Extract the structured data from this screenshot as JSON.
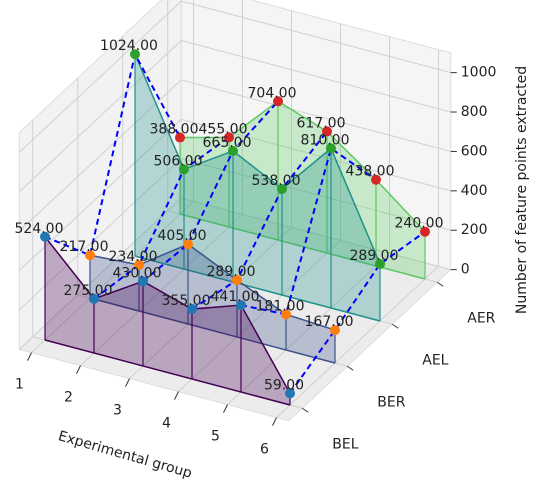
{
  "chart_data": {
    "type": "area3d",
    "xlabel": "Experimental group",
    "zlabel": "Number of feature points extracted",
    "x": [
      1,
      2,
      3,
      4,
      5,
      6
    ],
    "xticks": [
      1,
      2,
      3,
      4,
      5,
      6
    ],
    "zlim": [
      0,
      1100
    ],
    "zticks": [
      0,
      200,
      400,
      600,
      800,
      1000
    ],
    "connector_color": "#0000ff",
    "series": [
      {
        "name": "BEL",
        "color": "#440154",
        "marker_color": "#1f77b4",
        "values": [
          524,
          275,
          430,
          355,
          441,
          59
        ],
        "value_labels": [
          "524.00",
          "275.00",
          "430.00",
          "355.00",
          "441.00",
          "59.00"
        ]
      },
      {
        "name": "BER",
        "color": "#3b528b",
        "marker_color": "#ff7f0e",
        "values": [
          217,
          234,
          405,
          289,
          181,
          167
        ],
        "value_labels": [
          "217.00",
          "234.00",
          "405.00",
          "289.00",
          "181.00",
          "167.00"
        ]
      },
      {
        "name": "AEL",
        "color": "#21918c",
        "marker_color": "#2ca02c",
        "values": [
          1024,
          506,
          665,
          538,
          810,
          289
        ],
        "value_labels": [
          "1024.00",
          "506.00",
          "665.00",
          "538.00",
          "810.00",
          "289.00"
        ]
      },
      {
        "name": "AER",
        "color": "#5ec962",
        "marker_color": "#d62728",
        "values": [
          388,
          455,
          704,
          617,
          438,
          240
        ],
        "value_labels": [
          "388.00",
          "455.00",
          "704.00",
          "617.00",
          "438.00",
          "240.00"
        ]
      }
    ]
  }
}
